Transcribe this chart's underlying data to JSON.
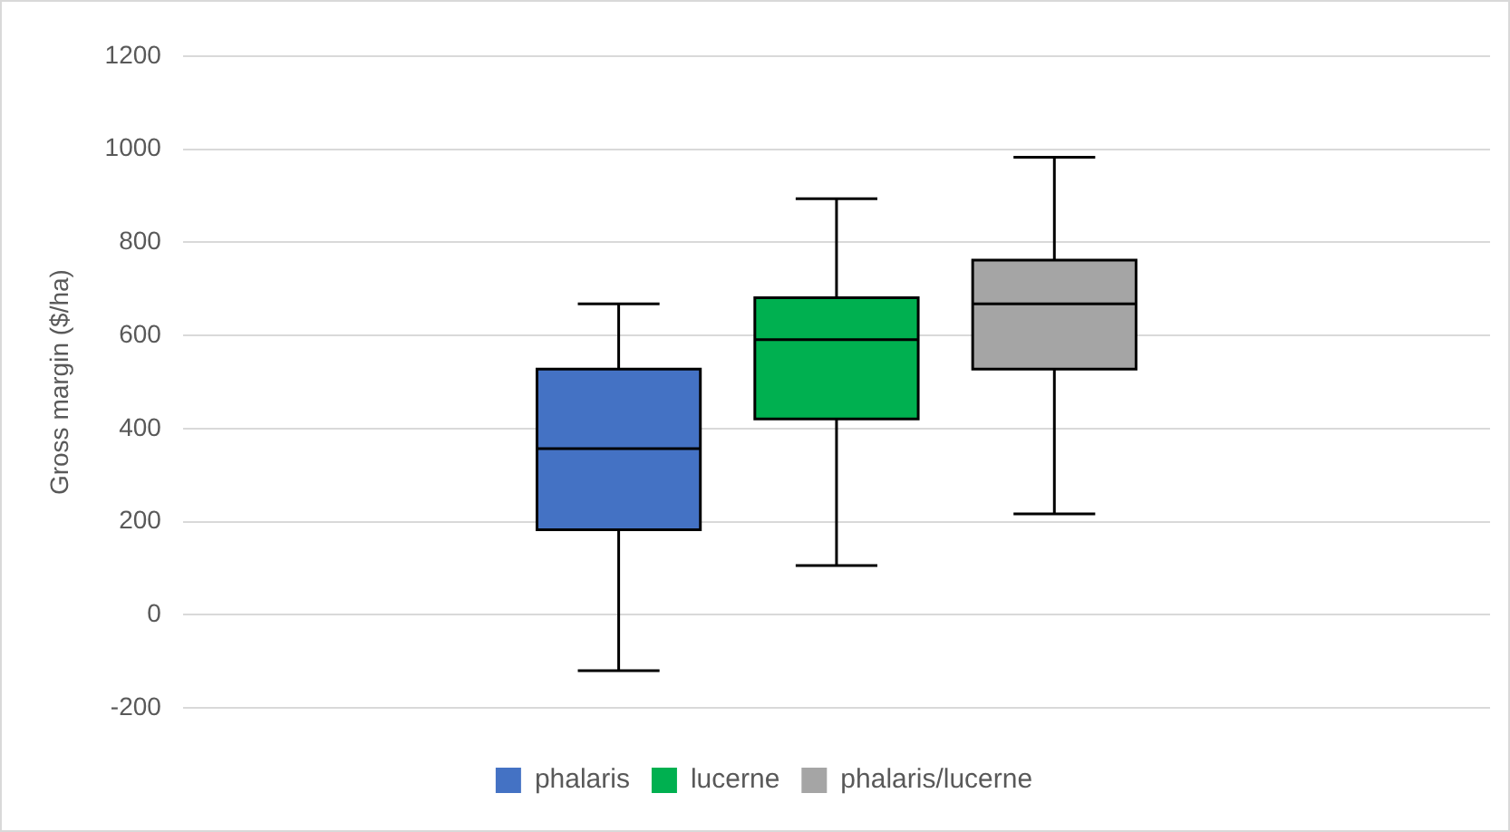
{
  "chart_data": {
    "type": "box",
    "ylabel": "Gross margin ($/ha)",
    "categories": [
      null
    ],
    "ylim": [
      -200,
      1200
    ],
    "yticks": [
      -200,
      0,
      200,
      400,
      600,
      800,
      1000,
      1200
    ],
    "grid": "y",
    "legend": "bottom",
    "series": [
      {
        "name": "phalaris",
        "color": "#4472c4",
        "boxes": [
          {
            "low": -120,
            "q1": 183,
            "median": 357,
            "q3": 528,
            "high": 668
          }
        ]
      },
      {
        "name": "lucerne",
        "color": "#00b050",
        "boxes": [
          {
            "low": 106,
            "q1": 421,
            "median": 591,
            "q3": 681,
            "high": 894
          }
        ]
      },
      {
        "name": "phalaris/lucerne",
        "color": "#a5a5a5",
        "boxes": [
          {
            "low": 217,
            "q1": 528,
            "median": 668,
            "q3": 762,
            "high": 983
          }
        ]
      }
    ]
  }
}
